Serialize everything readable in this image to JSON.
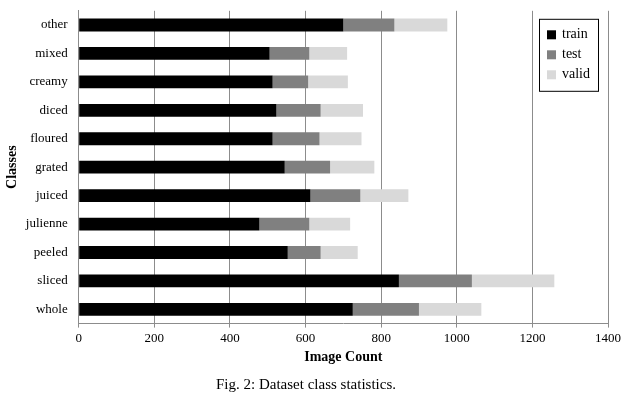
{
  "chart_data": {
    "type": "bar",
    "orientation": "horizontal",
    "stacked": true,
    "title": "Fig. 2: Dataset class statistics.",
    "x_label": "Image Count",
    "y_label": "Classes",
    "categories": [
      "other",
      "mixed",
      "creamy",
      "diced",
      "floured",
      "grated",
      "juiced",
      "julienne",
      "peeled",
      "sliced",
      "whole"
    ],
    "series": [
      {
        "name": "train",
        "color": "#000000",
        "values": [
          700,
          505,
          513,
          523,
          513,
          545,
          613,
          478,
          553,
          847,
          725
        ]
      },
      {
        "name": "test",
        "color": "#808080",
        "values": [
          135,
          105,
          94,
          117,
          124,
          120,
          132,
          132,
          87,
          193,
          175
        ]
      },
      {
        "name": "valid",
        "color": "#d9d9d9",
        "values": [
          140,
          100,
          105,
          112,
          111,
          117,
          127,
          108,
          98,
          218,
          165
        ]
      }
    ],
    "xlim": [
      0,
      1400
    ],
    "xticks": [
      0,
      200,
      400,
      600,
      800,
      1000,
      1200,
      1400
    ],
    "grid": true,
    "legend": "upper right"
  }
}
